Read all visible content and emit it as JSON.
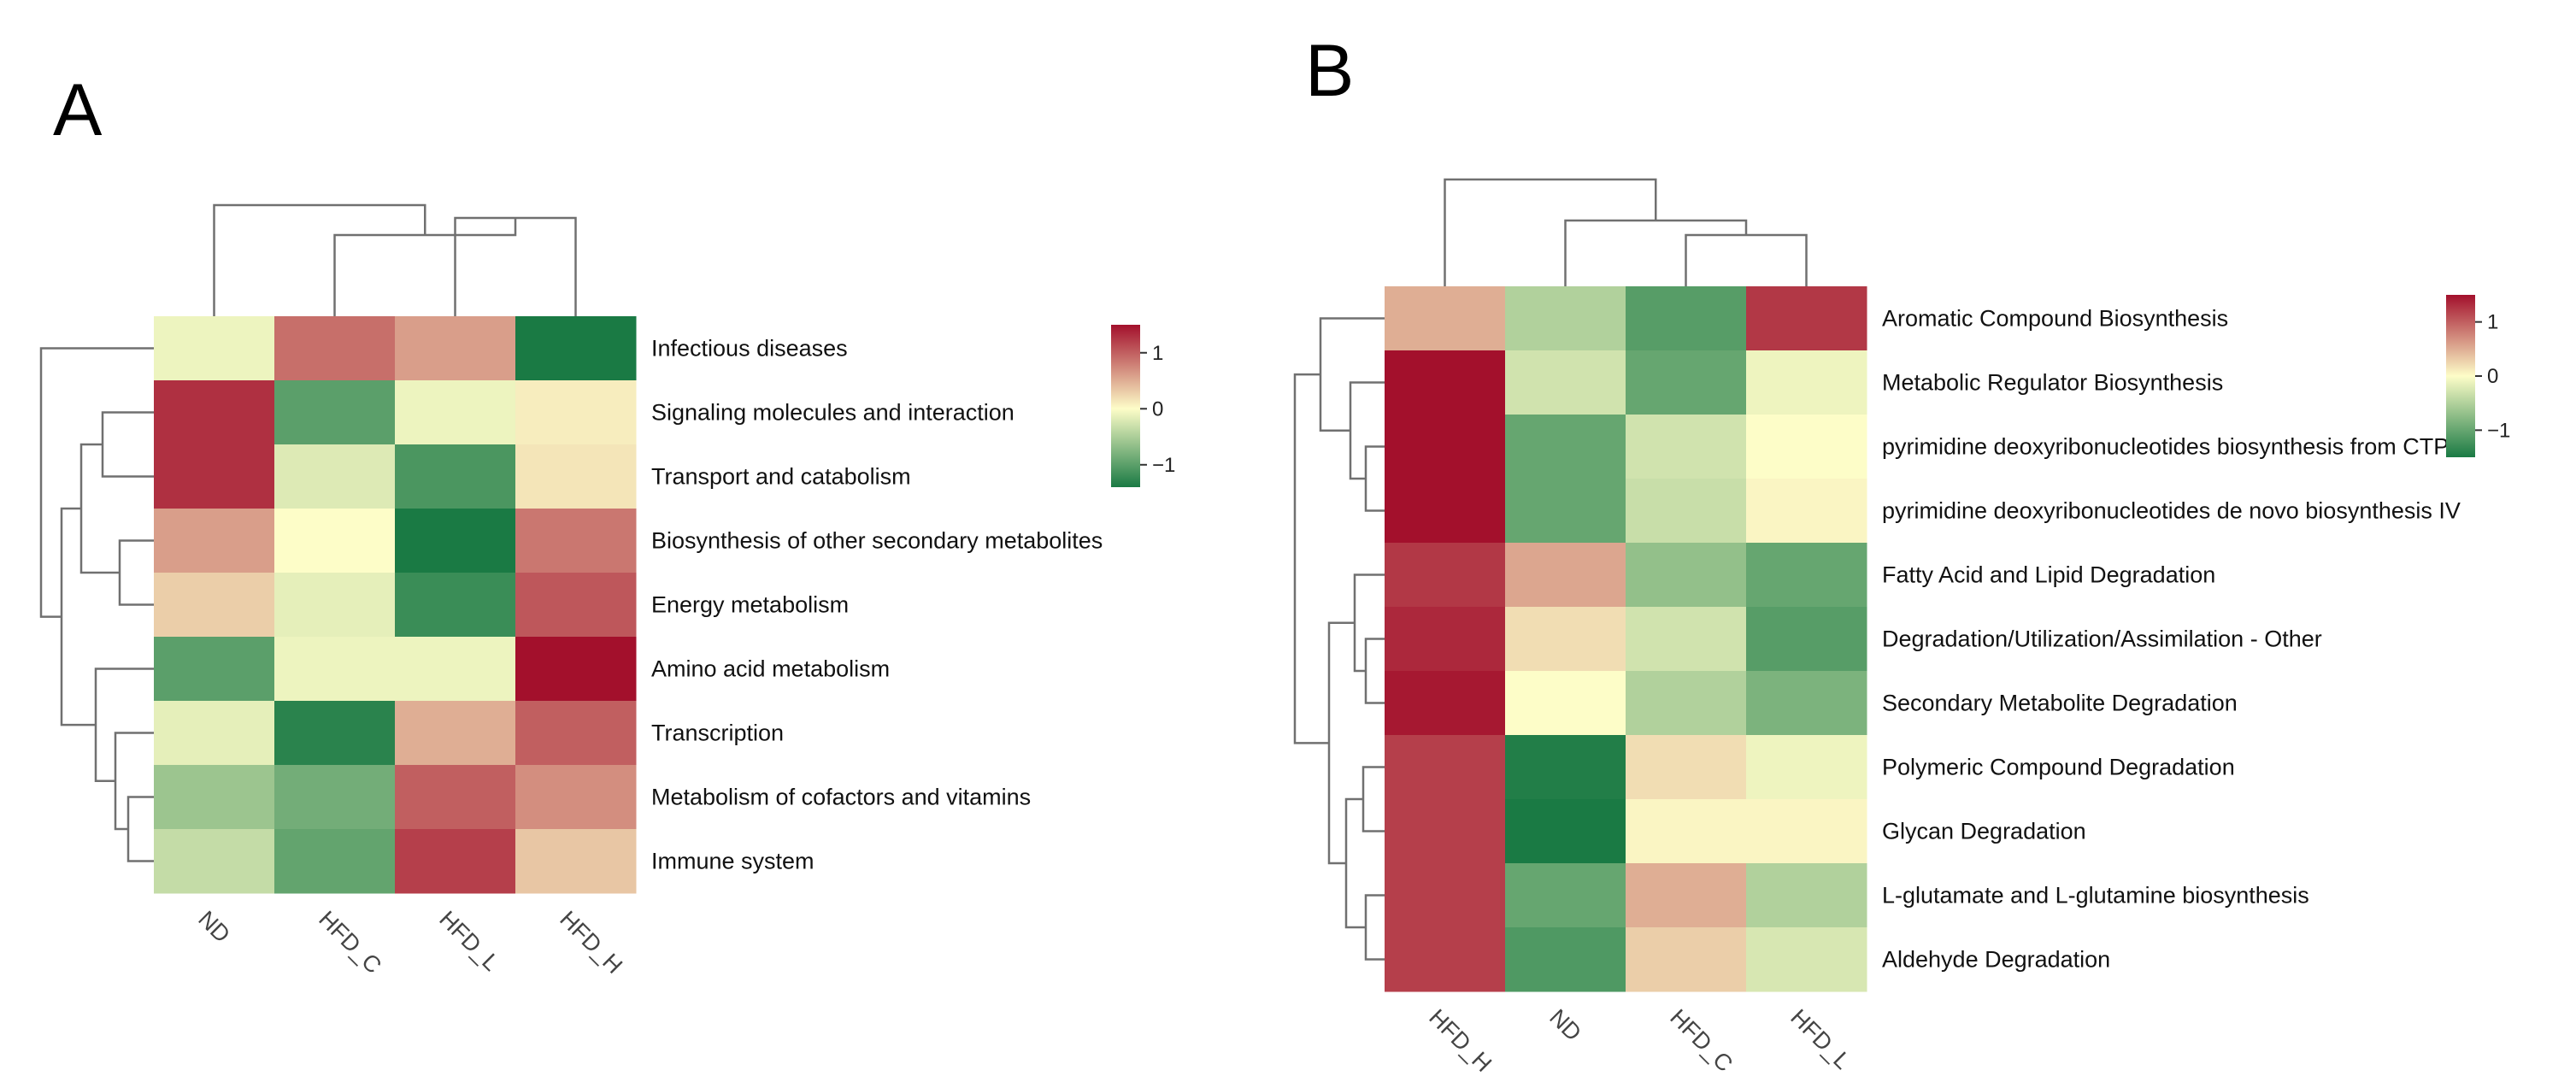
{
  "figure": {
    "panel_a_letter": "A",
    "panel_b_letter": "B"
  },
  "chart_data": [
    {
      "type": "heatmap",
      "panel": "A",
      "title": "",
      "columns": [
        "ND",
        "HFD_C",
        "HFD_L",
        "HFD_H"
      ],
      "rows": [
        "Infectious diseases",
        "Signaling molecules and interaction",
        "Transport and catabolism",
        "Biosynthesis of other secondary metabolites",
        "Energy metabolism",
        "Amino acid metabolism",
        "Transcription",
        "Metabolism of cofactors and vitamins",
        "Immune system"
      ],
      "values": [
        [
          -0.1,
          0.9,
          0.6,
          -1.4
        ],
        [
          1.3,
          -1.0,
          -0.1,
          0.1
        ],
        [
          1.3,
          -0.2,
          -1.1,
          0.15
        ],
        [
          0.6,
          0.0,
          -1.4,
          0.85
        ],
        [
          0.3,
          -0.15,
          -1.2,
          1.05
        ],
        [
          -1.0,
          -0.1,
          -0.1,
          1.5
        ],
        [
          -0.15,
          -1.3,
          0.5,
          1.0
        ],
        [
          -0.6,
          -0.85,
          1.0,
          0.7
        ],
        [
          -0.35,
          -0.95,
          1.2,
          0.35
        ]
      ],
      "color_scale": {
        "min": -1.4,
        "max": 1.5,
        "low": "#1a7a44",
        "mid": "#fdfdc8",
        "high": "#a3102c",
        "ticks": [
          1,
          0,
          -1
        ],
        "tick_labels": [
          "1",
          "0",
          "−1"
        ]
      }
    },
    {
      "type": "heatmap",
      "panel": "B",
      "title": "",
      "columns": [
        "HFD_H",
        "ND",
        "HFD_C",
        "HFD_L"
      ],
      "rows": [
        "Aromatic Compound Biosynthesis",
        "Metabolic Regulator Biosynthesis",
        "pyrimidine deoxyribonucleotides biosynthesis from CTP",
        "pyrimidine deoxyribonucleotides de novo biosynthesis IV",
        "Fatty Acid and Lipid Degradation",
        "Degradation/Utilization/Assimilation - Other",
        "Secondary Metabolite Degradation",
        "Polymeric Compound Degradation",
        "Glycan Degradation",
        "L-glutamate and L-glutamine biosynthesis",
        "Aldehyde Degradation"
      ],
      "values": [
        [
          0.5,
          -0.5,
          -1.1,
          1.25
        ],
        [
          1.5,
          -0.3,
          -1.0,
          -0.1
        ],
        [
          1.5,
          -1.0,
          -0.3,
          0.0
        ],
        [
          1.5,
          -1.0,
          -0.35,
          0.05
        ],
        [
          1.25,
          0.55,
          -0.7,
          -1.0
        ],
        [
          1.35,
          0.2,
          -0.3,
          -1.1
        ],
        [
          1.45,
          0.0,
          -0.5,
          -0.85
        ],
        [
          1.2,
          -1.45,
          0.2,
          -0.1
        ],
        [
          1.2,
          -1.5,
          0.05,
          0.05
        ],
        [
          1.2,
          -1.0,
          0.5,
          -0.5
        ],
        [
          1.2,
          -1.15,
          0.3,
          -0.25
        ]
      ],
      "color_scale": {
        "min": -1.5,
        "max": 1.5,
        "low": "#1a7a44",
        "mid": "#fdfdc8",
        "high": "#a3102c",
        "ticks": [
          1,
          0,
          -1
        ],
        "tick_labels": [
          "1",
          "0",
          "−1"
        ]
      }
    }
  ]
}
